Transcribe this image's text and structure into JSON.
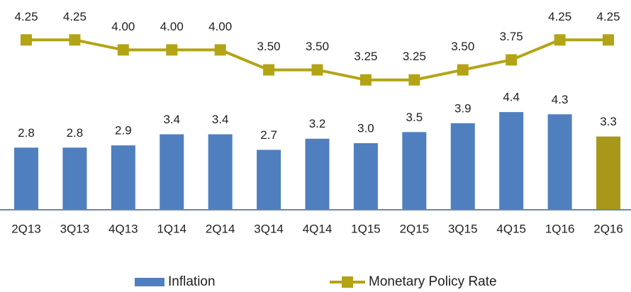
{
  "chart_data": {
    "type": "bar",
    "categories": [
      "2Q13",
      "3Q13",
      "4Q13",
      "1Q14",
      "2Q14",
      "3Q14",
      "4Q14",
      "1Q15",
      "2Q15",
      "3Q15",
      "4Q15",
      "1Q16",
      "2Q16"
    ],
    "series": [
      {
        "name": "Inflation",
        "type": "bar",
        "color": "#4f7fbe",
        "point_colors": [
          "#4f7fbe",
          "#4f7fbe",
          "#4f7fbe",
          "#4f7fbe",
          "#4f7fbe",
          "#4f7fbe",
          "#4f7fbe",
          "#4f7fbe",
          "#4f7fbe",
          "#4f7fbe",
          "#4f7fbe",
          "#4f7fbe",
          "#a8981a"
        ],
        "values": [
          2.8,
          2.8,
          2.9,
          3.4,
          3.4,
          2.7,
          3.2,
          3.0,
          3.5,
          3.9,
          4.4,
          4.3,
          3.3
        ],
        "value_labels": [
          "2.8",
          "2.8",
          "2.9",
          "3.4",
          "3.4",
          "2.7",
          "3.2",
          "3.0",
          "3.5",
          "3.9",
          "4.4",
          "4.3",
          "3.3"
        ]
      },
      {
        "name": "Monetary Policy Rate",
        "type": "line",
        "axis": "y2",
        "color": "#b3a416",
        "values": [
          4.25,
          4.25,
          4.0,
          4.0,
          4.0,
          3.5,
          3.5,
          3.25,
          3.25,
          3.5,
          3.75,
          4.25,
          4.25
        ],
        "value_labels": [
          "4.25",
          "4.25",
          "4.00",
          "4.00",
          "4.00",
          "3.50",
          "3.50",
          "3.25",
          "3.25",
          "3.50",
          "3.75",
          "4.25",
          "4.25"
        ]
      }
    ],
    "ylim": [
      0,
      9
    ],
    "y2lim": [
      0,
      5
    ],
    "legend": "bottom"
  }
}
